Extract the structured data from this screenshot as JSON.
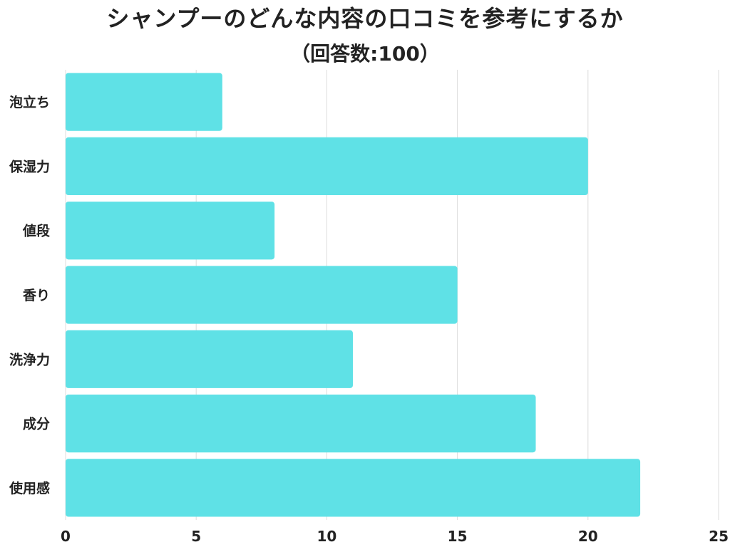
{
  "chart_data": {
    "type": "bar",
    "orientation": "horizontal",
    "title": "シャンプーのどんな内容の口コミを参考にするか",
    "subtitle": "（回答数:100）",
    "categories": [
      "泡立ち",
      "保湿力",
      "値段",
      "香り",
      "洗浄力",
      "成分",
      "使用感"
    ],
    "values": [
      6,
      20,
      8,
      15,
      11,
      18,
      22
    ],
    "xlim": [
      0,
      25
    ],
    "xticks": [
      "0",
      "5",
      "10",
      "15",
      "20",
      "25"
    ],
    "grid": true,
    "bar_color": "#5fe1e6",
    "grid_color": "#dcdcdc"
  }
}
